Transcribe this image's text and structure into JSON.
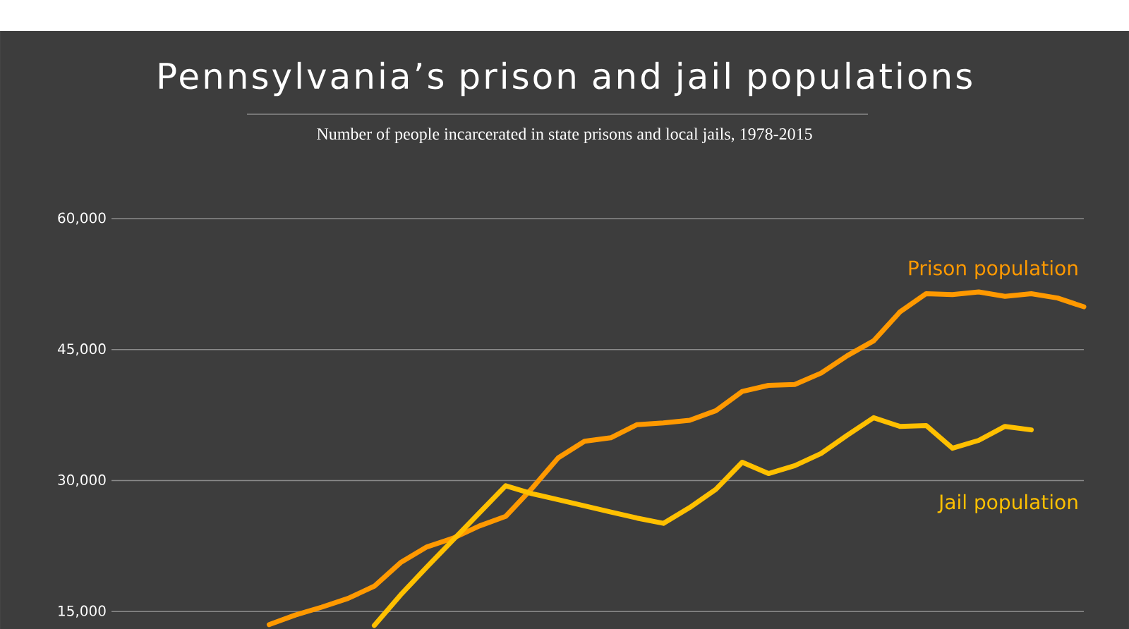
{
  "chart_data": {
    "type": "line",
    "title": "Pennsylvania’s prison and jail populations",
    "subtitle": "Number of people incarcerated in state prisons and local jails, 1978-2015",
    "categories": [
      null,
      null,
      null,
      null,
      null,
      null,
      null,
      null,
      null,
      null,
      null,
      null,
      null,
      null,
      null,
      null,
      null,
      null,
      null,
      null,
      null,
      null,
      null,
      null,
      null,
      null,
      null,
      null,
      null,
      null,
      null,
      null,
      null,
      null,
      null,
      null,
      null,
      null
    ],
    "series": [
      {
        "name": "Prison population",
        "color": "#ff9900",
        "values": [
          null,
          null,
          null,
          null,
          null,
          null,
          13500,
          14600,
          15500,
          16500,
          17900,
          20600,
          22400,
          23400,
          24800,
          25900,
          29100,
          32600,
          34500,
          34900,
          36400,
          36600,
          36900,
          38000,
          40200,
          40900,
          41000,
          42300,
          44300,
          46000,
          49300,
          51400,
          51300,
          51600,
          51100,
          51400,
          50900,
          49900
        ]
      },
      {
        "name": "Jail population",
        "color": "#ffc000",
        "values": [
          null,
          null,
          null,
          null,
          null,
          null,
          null,
          null,
          null,
          null,
          13400,
          16900,
          20100,
          23200,
          26300,
          29400,
          28500,
          27800,
          27100,
          26400,
          25700,
          25100,
          26900,
          29000,
          32100,
          30800,
          31700,
          33100,
          35200,
          37200,
          36200,
          36300,
          33700,
          34600,
          36200,
          35800,
          null,
          null
        ]
      }
    ],
    "ylim": [
      13000,
      60000
    ],
    "yticks": [
      {
        "value": 15000,
        "label": "15,000"
      },
      {
        "value": 30000,
        "label": "30,000"
      },
      {
        "value": 45000,
        "label": "45,000"
      },
      {
        "value": 60000,
        "label": "60,000"
      }
    ],
    "grid": "y",
    "legend": false,
    "tick_labels": "y",
    "line_style": "solid",
    "marker": "none"
  }
}
